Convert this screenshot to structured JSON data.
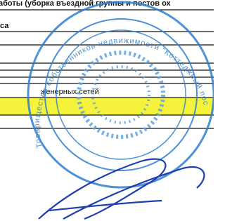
{
  "document": {
    "lines": [
      "аботы (уборка въездной группы и постов ох",
      "са",
      "женерных сетей"
    ],
    "stamp": {
      "outer_text": "Товарищество собственников недвижимости \"Коттеджный поселок \"Свато"
    }
  }
}
